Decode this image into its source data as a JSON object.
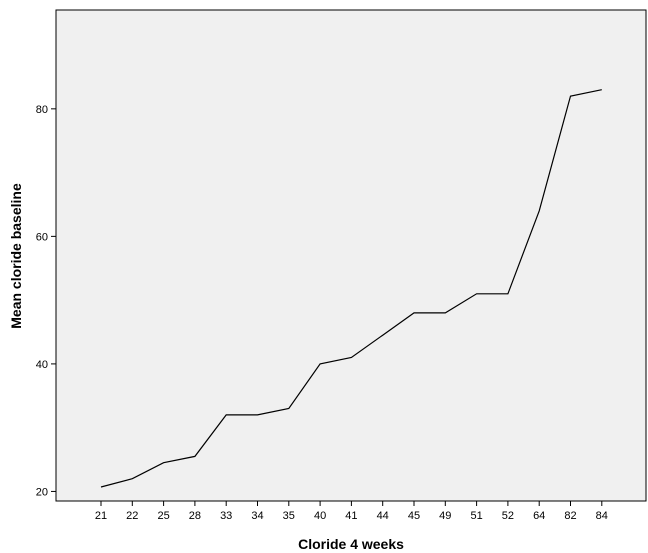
{
  "chart_data": {
    "type": "line",
    "title": "",
    "xlabel": "Cloride 4 weeks",
    "ylabel": "Mean cloride baseline",
    "categories": [
      "21",
      "22",
      "25",
      "28",
      "33",
      "34",
      "35",
      "40",
      "41",
      "44",
      "45",
      "49",
      "51",
      "52",
      "64",
      "82",
      "84"
    ],
    "series": [
      {
        "values": [
          20.7,
          22.0,
          24.5,
          25.5,
          32.0,
          32.0,
          33.0,
          40.0,
          41.0,
          44.5,
          48.0,
          48.0,
          51.0,
          51.0,
          64.0,
          82.0,
          83.0
        ]
      }
    ],
    "yticks": [
      20,
      40,
      60,
      80
    ],
    "ylim": [
      18.5,
      95.5
    ],
    "grid": false,
    "legend": "none",
    "colors": {
      "plot_background": "#f0f0f0",
      "line": "#000000",
      "frame": "#000000"
    }
  }
}
